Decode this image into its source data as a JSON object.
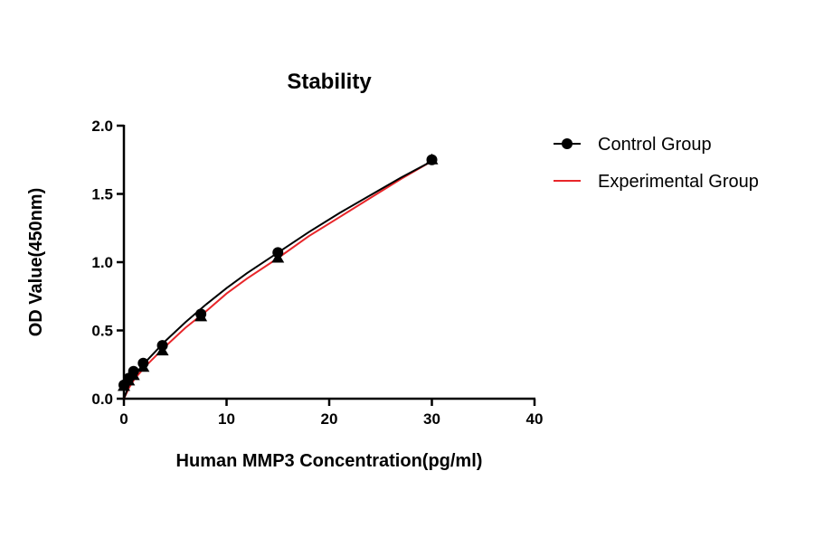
{
  "chart_data": {
    "type": "scatter",
    "title": "Stability",
    "xlabel": "Human MMP3 Concentration(pg/ml)",
    "ylabel": "OD Value(450nm)",
    "xlim": [
      0,
      40
    ],
    "ylim": [
      0,
      2.0
    ],
    "xticks": [
      "0",
      "10",
      "20",
      "30",
      "40"
    ],
    "yticks": [
      "0.0",
      "0.5",
      "1.0",
      "1.5",
      "2.0"
    ],
    "grid": false,
    "legend_position": "right",
    "series": [
      {
        "name": "Control Group",
        "color": "#000000",
        "marker": "circle",
        "x": [
          0,
          0.47,
          0.94,
          1.88,
          3.75,
          7.5,
          15,
          30
        ],
        "y": [
          0.1,
          0.15,
          0.2,
          0.26,
          0.39,
          0.62,
          1.07,
          1.75
        ],
        "curve_x": [
          0,
          0.5,
          1,
          2,
          4,
          6,
          8,
          10,
          12,
          15,
          18,
          21,
          24,
          27,
          30
        ],
        "curve_y": [
          0,
          0.1,
          0.16,
          0.26,
          0.42,
          0.56,
          0.69,
          0.81,
          0.92,
          1.07,
          1.22,
          1.36,
          1.49,
          1.62,
          1.74
        ]
      },
      {
        "name": "Experimental Group",
        "color": "#e8262a",
        "marker": "triangle",
        "x": [
          0,
          0.47,
          0.94,
          1.88,
          3.75,
          7.5,
          15,
          30
        ],
        "y": [
          0.09,
          0.13,
          0.17,
          0.23,
          0.35,
          0.6,
          1.03,
          1.75
        ],
        "curve_x": [
          0,
          0.5,
          1,
          2,
          4,
          6,
          8,
          10,
          12,
          15,
          18,
          21,
          24,
          27,
          30
        ],
        "curve_y": [
          0,
          0.08,
          0.14,
          0.23,
          0.38,
          0.52,
          0.64,
          0.77,
          0.88,
          1.03,
          1.19,
          1.33,
          1.47,
          1.61,
          1.74
        ]
      }
    ]
  }
}
